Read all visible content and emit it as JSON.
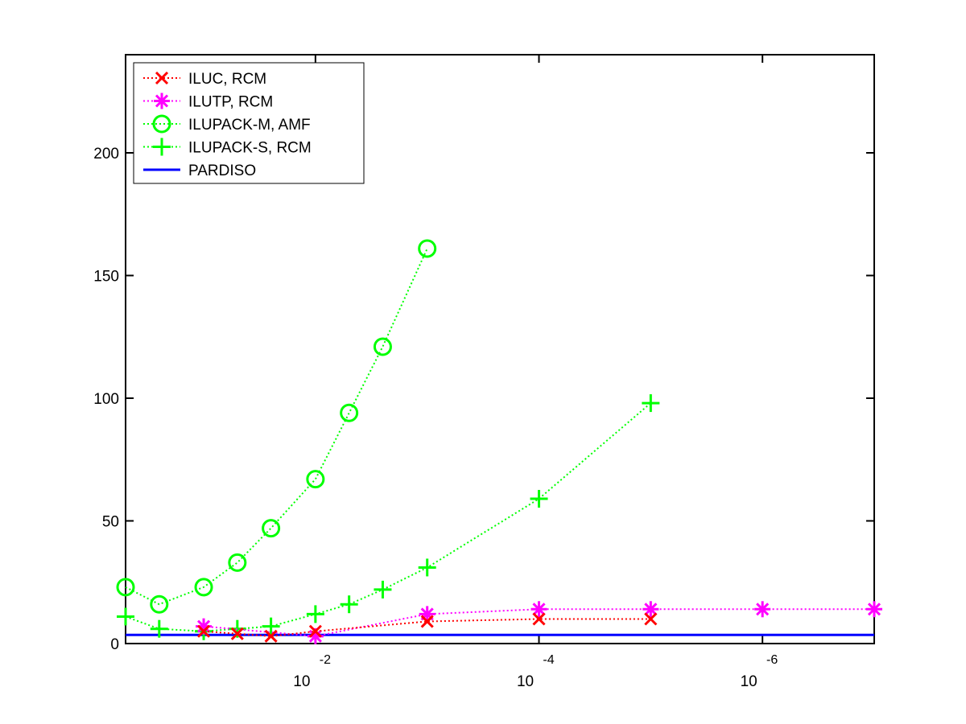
{
  "chart_data": {
    "type": "line",
    "x_scale": "log",
    "x_reversed": true,
    "xlim": [
      0.5,
      1e-07
    ],
    "ylim": [
      0,
      240
    ],
    "x_ticks": [
      {
        "value": 0.01,
        "base": "10",
        "exp": "-2"
      },
      {
        "value": 0.0001,
        "base": "10",
        "exp": "-4"
      },
      {
        "value": 1e-06,
        "base": "10",
        "exp": "-6"
      }
    ],
    "y_ticks": [
      0,
      50,
      100,
      150,
      200
    ],
    "grid": false,
    "legend_position": "top-left",
    "series": [
      {
        "name": "ILUC, RCM",
        "color": "#ff0000",
        "marker": "x",
        "x": [
          0.1,
          0.05,
          0.025,
          0.01,
          0.001,
          0.0001,
          1e-05
        ],
        "y": [
          5,
          4,
          3,
          5,
          9,
          10,
          10
        ]
      },
      {
        "name": "ILUTP, RCM",
        "color": "#ff00ff",
        "marker": "star",
        "x": [
          0.1,
          0.01,
          0.001,
          0.0001,
          1e-05,
          1e-06,
          1e-07
        ],
        "y": [
          7,
          3,
          12,
          14,
          14,
          14,
          14
        ]
      },
      {
        "name": "ILUPACK-M, AMF",
        "color": "#00ff00",
        "marker": "circle",
        "x": [
          0.5,
          0.25,
          0.1,
          0.05,
          0.025,
          0.01,
          0.005,
          0.0025,
          0.001
        ],
        "y": [
          23,
          16,
          23,
          33,
          47,
          67,
          94,
          121,
          161
        ]
      },
      {
        "name": "ILUPACK-S, RCM",
        "color": "#00ff00",
        "marker": "plus",
        "x": [
          0.5,
          0.25,
          0.1,
          0.05,
          0.025,
          0.01,
          0.005,
          0.0025,
          0.001,
          0.0001,
          1e-05
        ],
        "y": [
          11,
          6,
          5,
          6,
          7,
          12,
          16,
          22,
          31,
          59,
          98
        ]
      },
      {
        "name": "PARDISO",
        "color": "#0000ff",
        "marker": "none",
        "x": [
          0.5,
          1e-07
        ],
        "y": [
          3.5,
          3.5
        ]
      }
    ]
  }
}
